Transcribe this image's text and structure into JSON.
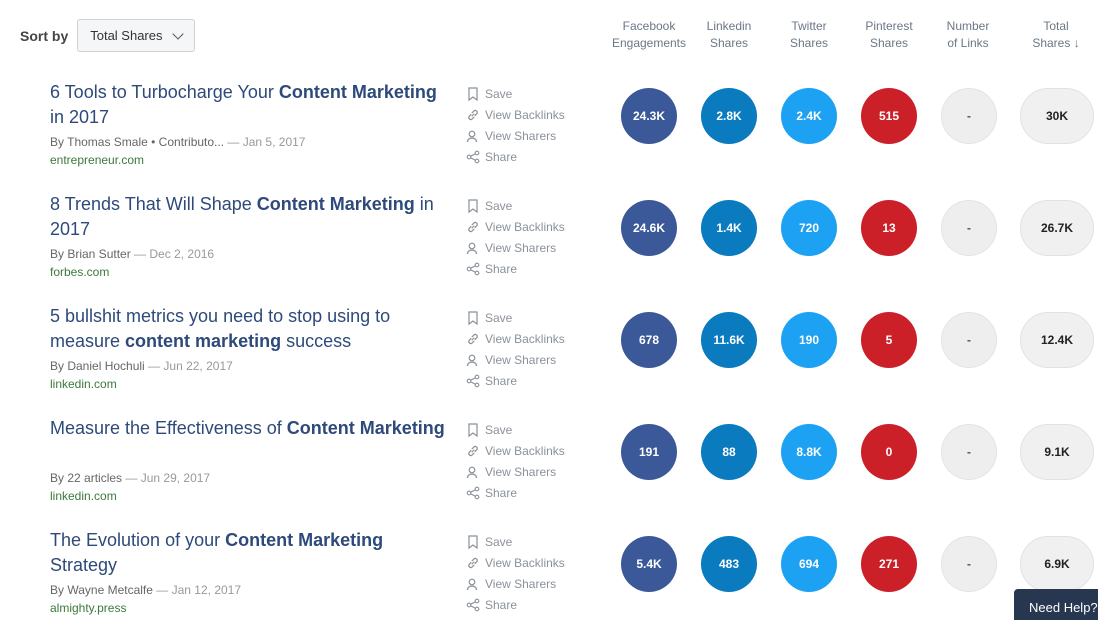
{
  "sort": {
    "label": "Sort by",
    "value": "Total Shares"
  },
  "columns": {
    "facebook": [
      "Facebook",
      "Engagements"
    ],
    "linkedin": [
      "Linkedin",
      "Shares"
    ],
    "twitter": [
      "Twitter",
      "Shares"
    ],
    "pinterest": [
      "Pinterest",
      "Shares"
    ],
    "links": [
      "Number",
      "of Links"
    ],
    "total": [
      "Total",
      "Shares"
    ],
    "sort_arrow": "↓"
  },
  "actions": {
    "save": "Save",
    "backlinks": "View Backlinks",
    "sharers": "View Sharers",
    "share": "Share"
  },
  "colors": {
    "facebook": "#3b5998",
    "linkedin": "#0a7bbf",
    "twitter": "#1da1f2",
    "pinterest": "#cb2027"
  },
  "articles": [
    {
      "title_parts": [
        {
          "t": "6 Tools to Turbocharge Your ",
          "b": false
        },
        {
          "t": "Content Marketing",
          "b": true
        },
        {
          "t": " in 2017",
          "b": false
        }
      ],
      "author": "By Thomas Smale • Contributo...",
      "date": "— Jan 5, 2017",
      "domain": "entrepreneur.com",
      "facebook": "24.3K",
      "linkedin": "2.8K",
      "twitter": "2.4K",
      "pinterest": "515",
      "links": "-",
      "total": "30K"
    },
    {
      "title_parts": [
        {
          "t": "8 Trends That Will Shape ",
          "b": false
        },
        {
          "t": "Content Marketing",
          "b": true
        },
        {
          "t": " in 2017",
          "b": false
        }
      ],
      "author": "By Brian Sutter",
      "date": "— Dec 2, 2016",
      "domain": "forbes.com",
      "facebook": "24.6K",
      "linkedin": "1.4K",
      "twitter": "720",
      "pinterest": "13",
      "links": "-",
      "total": "26.7K"
    },
    {
      "title_parts": [
        {
          "t": "5 bullshit metrics you need to stop using to measure ",
          "b": false
        },
        {
          "t": "content marketing",
          "b": true
        },
        {
          "t": " success",
          "b": false
        }
      ],
      "author": "By Daniel Hochuli",
      "date": "— Jun 22, 2017",
      "domain": "linkedin.com",
      "facebook": "678",
      "linkedin": "11.6K",
      "twitter": "190",
      "pinterest": "5",
      "links": "-",
      "total": "12.4K"
    },
    {
      "title_parts": [
        {
          "t": "Measure the Effectiveness of ",
          "b": false
        },
        {
          "t": "Content Marketing",
          "b": true
        }
      ],
      "author": "By 22 articles",
      "date": "— Jun 29, 2017",
      "domain": "linkedin.com",
      "facebook": "191",
      "linkedin": "88",
      "twitter": "8.8K",
      "pinterest": "0",
      "links": "-",
      "total": "9.1K"
    },
    {
      "title_parts": [
        {
          "t": "The Evolution of your ",
          "b": false
        },
        {
          "t": "Content Marketing",
          "b": true
        },
        {
          "t": " Strategy",
          "b": false
        }
      ],
      "author": "By Wayne Metcalfe",
      "date": "— Jan 12, 2017",
      "domain": "almighty.press",
      "facebook": "5.4K",
      "linkedin": "483",
      "twitter": "694",
      "pinterest": "271",
      "links": "-",
      "total": "6.9K"
    }
  ],
  "help": "Need Help?"
}
